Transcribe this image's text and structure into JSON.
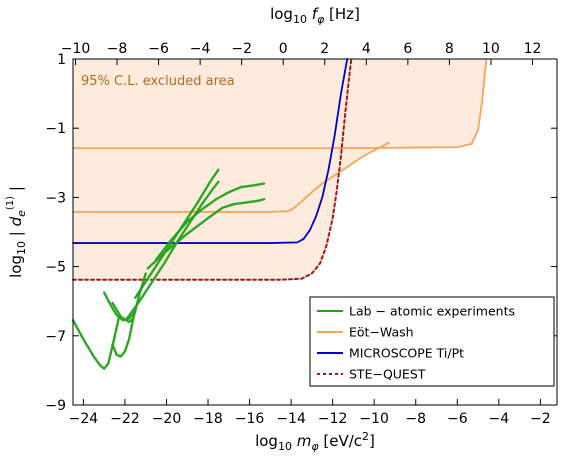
{
  "chart_data": {
    "type": "line",
    "xlabel": {
      "pre": "log",
      "sub": "10",
      "var": "m",
      "varsub": "φ",
      "unit": " [eV/c",
      "sup": "2",
      "close": "]"
    },
    "top_xlabel": {
      "pre": "log",
      "sub": "10",
      "var": "f",
      "varsub": "φ",
      "unit": " [Hz]"
    },
    "ylabel": {
      "pre": "log",
      "sub": "10",
      "var": "d",
      "varsub": "e",
      "sup": "(1)"
    },
    "xlim": [
      -24.5,
      -1.2
    ],
    "ylim": [
      -9,
      1
    ],
    "x_ticks": [
      "−24",
      "−22",
      "−20",
      "−18",
      "−16",
      "−14",
      "−12",
      "−10",
      "−8",
      "−6",
      "−4",
      "−2"
    ],
    "x_tick_values": [
      -24,
      -22,
      -20,
      -18,
      -16,
      -14,
      -12,
      -10,
      -8,
      -6,
      -4,
      -2
    ],
    "top_ticks": [
      "−10",
      "−8",
      "−6",
      "−4",
      "−2",
      "0",
      "2",
      "4",
      "6",
      "8",
      "10",
      "12"
    ],
    "top_tick_values": [
      -10,
      -8,
      -6,
      -4,
      -2,
      0,
      2,
      4,
      6,
      8,
      10,
      12
    ],
    "top_offset": 14.38,
    "y_ticks": [
      "1",
      "−1",
      "−3",
      "−5",
      "−7",
      "−9"
    ],
    "y_tick_values": [
      1,
      -1,
      -3,
      -5,
      -7,
      -9
    ],
    "annotation": "95% C.L. excluded area",
    "grid": false,
    "legend_placement": "bottom-right",
    "legend": [
      {
        "label": "Lab − atomic experiments",
        "color": "#22a31a",
        "dash": false
      },
      {
        "label": "Eöt−Wash",
        "color": "#f5a55a",
        "dash": false
      },
      {
        "label": "MICROSCOPE Ti/Pt",
        "color": "#0000cc",
        "dash": false
      },
      {
        "label": "STE−QUEST",
        "color": "#a51515",
        "dash": true
      }
    ],
    "colors": {
      "fill": "#fdebdd",
      "lab": "#22a31a",
      "eotwash": "#f5a55a",
      "microscope": "#0000cc",
      "stequest": "#a51515",
      "annotation": "#b86a1e"
    },
    "series": [
      {
        "name": "Eöt−Wash",
        "x": [
          -24.5,
          -20,
          -15,
          -14.2,
          -14.0,
          -13.8,
          -13.5,
          -13.2,
          -12.9,
          -12.5,
          -11.5,
          -10.5,
          -9.3
        ],
        "y": [
          -3.42,
          -3.42,
          -3.42,
          -3.4,
          -3.36,
          -3.28,
          -3.12,
          -2.95,
          -2.8,
          -2.6,
          -2.2,
          -1.8,
          -1.42
        ]
      },
      {
        "name": "Eöt−Wash",
        "x": [
          -24.5,
          -18,
          -12,
          -8,
          -6,
          -5.3,
          -5.0,
          -4.8,
          -4.7,
          -4.6
        ],
        "y": [
          -1.58,
          -1.58,
          -1.58,
          -1.56,
          -1.55,
          -1.45,
          -1.05,
          -0.2,
          0.4,
          1.0
        ]
      },
      {
        "name": "MICROSCOPE Ti/Pt",
        "x": [
          -24.5,
          -15,
          -13.7,
          -13.4,
          -13.1,
          -12.8,
          -12.5,
          -12.2,
          -11.9,
          -11.6,
          -11.3
        ],
        "y": [
          -4.32,
          -4.32,
          -4.3,
          -4.2,
          -3.95,
          -3.55,
          -3.0,
          -2.2,
          -1.2,
          0.0,
          1.0
        ]
      },
      {
        "name": "STE−QUEST",
        "x": [
          -24.5,
          -14.5,
          -13.5,
          -13.0,
          -12.6,
          -12.3,
          -12.0,
          -11.8,
          -11.6,
          -11.4,
          -11.2,
          -11.1
        ],
        "y": [
          -5.38,
          -5.38,
          -5.35,
          -5.2,
          -4.9,
          -4.4,
          -3.6,
          -2.8,
          -1.8,
          -0.6,
          0.5,
          1.0
        ]
      },
      {
        "name": "Lab − atomic experiments",
        "x": [
          -24.5,
          -24.0,
          -23.5,
          -23.2,
          -23.0,
          -22.8,
          -22.6,
          -22.3
        ],
        "y": [
          -6.55,
          -7.1,
          -7.6,
          -7.85,
          -7.95,
          -7.8,
          -7.3,
          -6.5
        ]
      },
      {
        "name": "Lab − atomic experiments",
        "x": [
          -22.6,
          -22.4,
          -22.2,
          -22.0,
          -21.8,
          -21.6,
          -21.3,
          -21.0
        ],
        "y": [
          -7.25,
          -7.55,
          -7.6,
          -7.45,
          -7.1,
          -6.5,
          -5.8,
          -5.2
        ]
      },
      {
        "name": "Lab − atomic experiments",
        "x": [
          -23.0,
          -22.7,
          -22.4,
          -22.1,
          -21.8,
          -21.5
        ],
        "y": [
          -5.75,
          -6.1,
          -6.4,
          -6.55,
          -6.5,
          -6.3
        ]
      },
      {
        "name": "Lab − atomic experiments",
        "x": [
          -22.6,
          -22.2,
          -21.8,
          -21.6
        ],
        "y": [
          -6.05,
          -6.45,
          -6.6,
          -6.5
        ]
      },
      {
        "name": "Lab − atomic experiments",
        "x": [
          -21.9,
          -21.3,
          -20.7,
          -20.1,
          -19.5,
          -18.9,
          -18.3,
          -17.7,
          -17.5
        ],
        "y": [
          -6.5,
          -6.0,
          -5.45,
          -4.9,
          -4.3,
          -3.75,
          -3.2,
          -2.7,
          -2.55
        ]
      },
      {
        "name": "Lab − atomic experiments",
        "x": [
          -21.5,
          -20.9,
          -20.3,
          -19.7,
          -19.1,
          -18.5,
          -17.9,
          -17.5
        ],
        "y": [
          -5.9,
          -5.35,
          -4.8,
          -4.25,
          -3.7,
          -3.15,
          -2.55,
          -2.2
        ]
      },
      {
        "name": "Lab − atomic experiments",
        "x": [
          -20.9,
          -20.0,
          -19.0,
          -18.0,
          -17.3,
          -16.8,
          -16.2,
          -15.6,
          -15.3
        ],
        "y": [
          -5.05,
          -4.55,
          -4.05,
          -3.6,
          -3.3,
          -3.2,
          -3.15,
          -3.1,
          -3.05
        ]
      },
      {
        "name": "Lab − atomic experiments",
        "x": [
          -20.5,
          -19.8,
          -19.0,
          -18.3,
          -17.6,
          -17.0,
          -16.4,
          -15.8,
          -15.3
        ],
        "y": [
          -4.8,
          -4.25,
          -3.7,
          -3.35,
          -3.05,
          -2.85,
          -2.7,
          -2.65,
          -2.6
        ]
      }
    ]
  }
}
